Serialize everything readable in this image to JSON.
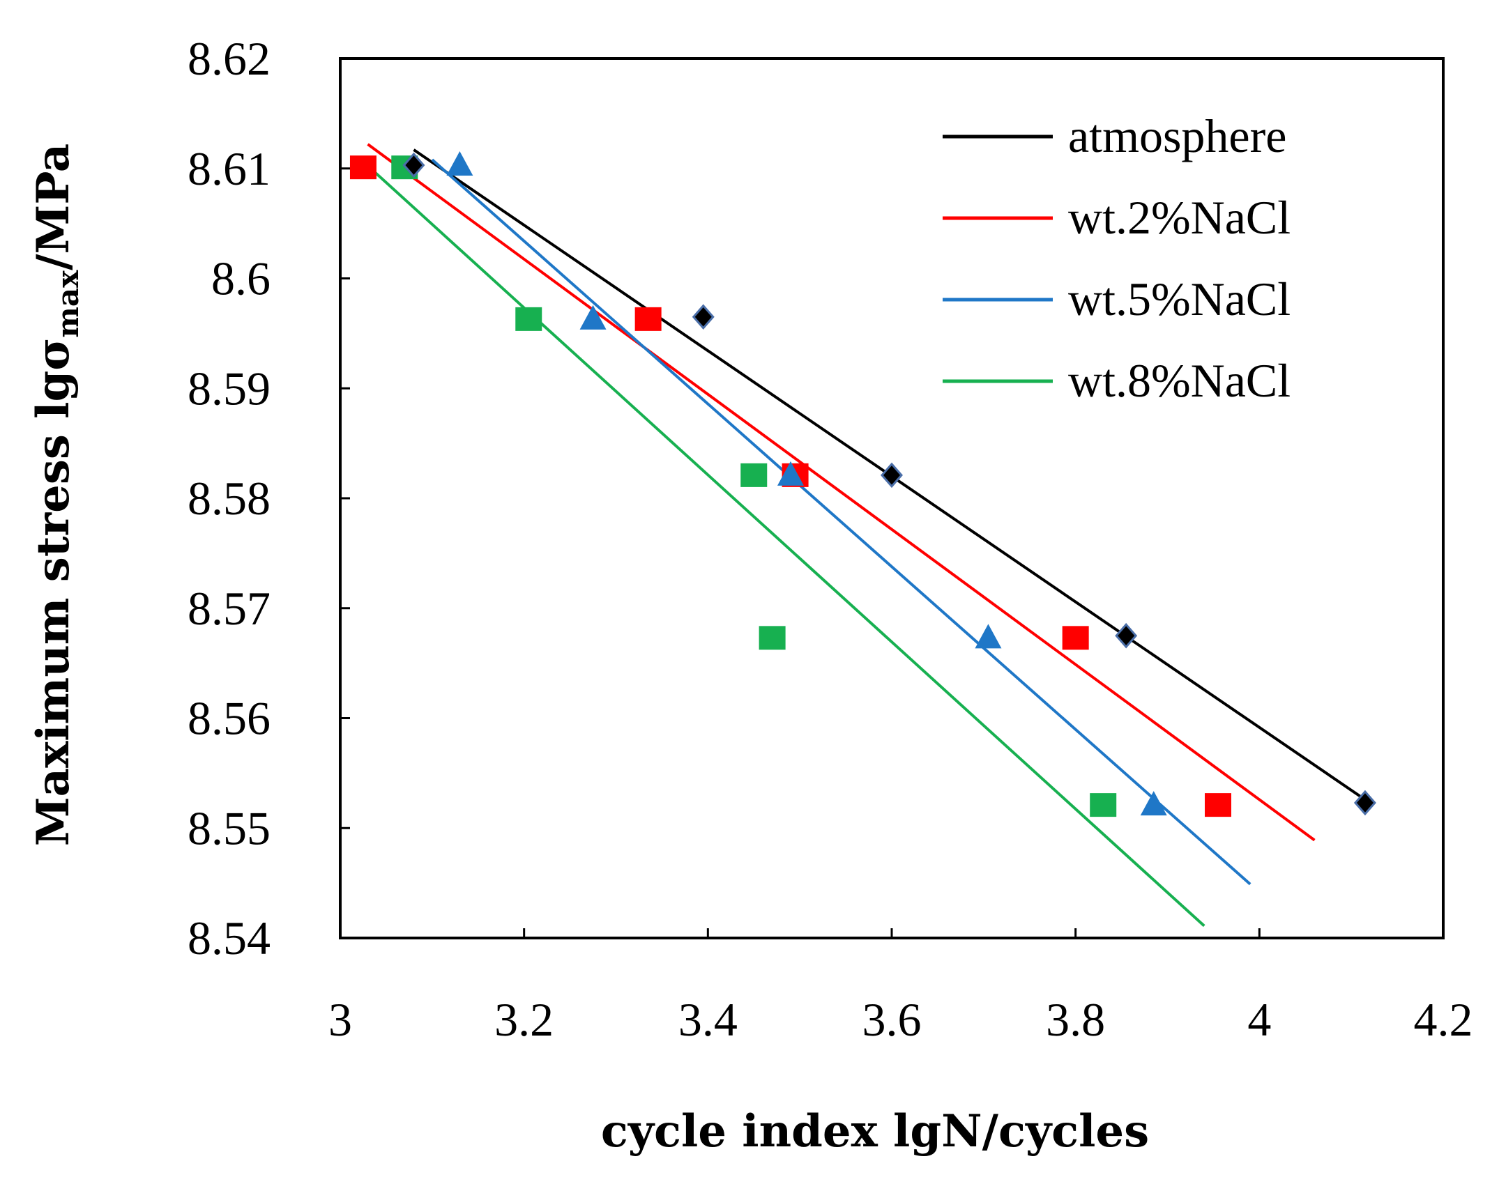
{
  "chart_data": {
    "type": "scatter",
    "title": "",
    "xlabel": "cycle index lgN/cycles",
    "ylabel": {
      "prefix": "Maximum stress lgσ",
      "subscript": "max",
      "suffix": "/MPa"
    },
    "xlim": [
      3,
      4.2
    ],
    "ylim": [
      8.54,
      8.62
    ],
    "xticks": [
      "3",
      "3.2",
      "3.4",
      "3.6",
      "3.8",
      "4",
      "4.2"
    ],
    "yticks": [
      "8.54",
      "8.55",
      "8.56",
      "8.57",
      "8.58",
      "8.59",
      "8.6",
      "8.61",
      "8.62"
    ],
    "legend_position": "top-right",
    "series": [
      {
        "name": "atmosphere",
        "color": "#000000",
        "marker": "diamond",
        "x": [
          3.08,
          3.395,
          3.6,
          3.855,
          4.115
        ],
        "y": [
          8.6103,
          8.5965,
          8.5821,
          8.5675,
          8.5523
        ],
        "fit": {
          "x": [
            3.08,
            4.12
          ],
          "y": [
            8.6117,
            8.5523
          ]
        }
      },
      {
        "name": "wt.2%NaCl",
        "color": "#ff0000",
        "marker": "square",
        "x": [
          3.025,
          3.335,
          3.495,
          3.8,
          3.955
        ],
        "y": [
          8.6101,
          8.5963,
          8.5821,
          8.5673,
          8.5521
        ],
        "fit": {
          "x": [
            3.03,
            4.06
          ],
          "y": [
            8.6122,
            8.5489
          ]
        }
      },
      {
        "name": "wt.5%NaCl",
        "color": "#1f77c7",
        "marker": "triangle",
        "x": [
          3.13,
          3.275,
          3.49,
          3.705,
          3.885
        ],
        "y": [
          8.6103,
          8.5963,
          8.5821,
          8.5673,
          8.5521
        ],
        "fit": {
          "x": [
            3.1,
            3.99
          ],
          "y": [
            8.6108,
            8.5449
          ]
        }
      },
      {
        "name": "wt.8%NaCl",
        "color": "#17b050",
        "marker": "square",
        "x": [
          3.07,
          3.205,
          3.45,
          3.47,
          3.83
        ],
        "y": [
          8.6101,
          8.5963,
          8.5821,
          8.5673,
          8.5521
        ],
        "fit": {
          "x": [
            3.02,
            3.94
          ],
          "y": [
            8.611,
            8.5411
          ]
        }
      }
    ]
  }
}
